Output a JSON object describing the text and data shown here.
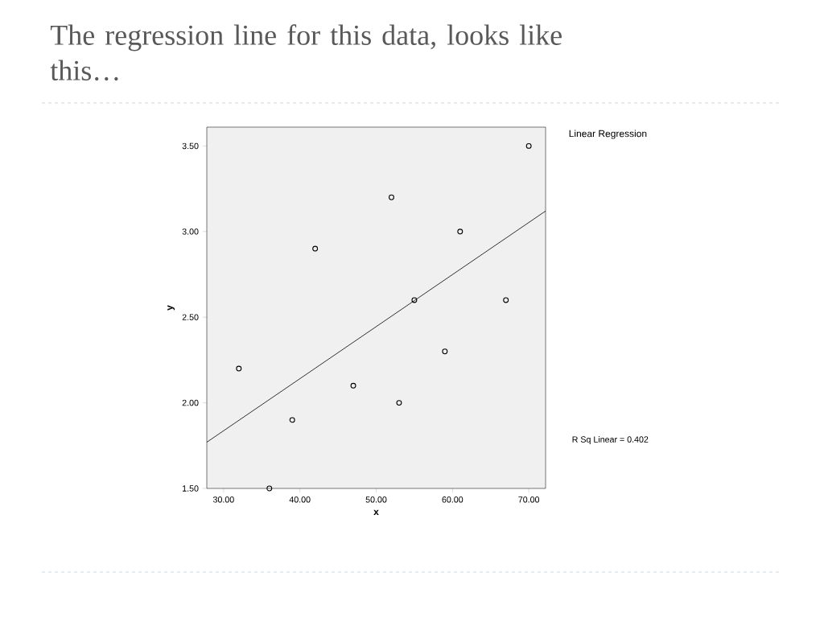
{
  "chart_data": {
    "type": "scatter",
    "title": "The regression line for this data, looks like this…",
    "xlabel": "x",
    "ylabel": "y",
    "x": [
      32,
      36,
      39,
      42,
      47,
      52,
      53,
      55,
      59,
      61,
      67,
      70
    ],
    "series": [
      {
        "type": "scatter",
        "color": "#000000",
        "marker": "circle",
        "values": [
          2.2,
          1.5,
          1.9,
          2.9,
          2.1,
          3.2,
          2.0,
          2.6,
          2.3,
          3.0,
          2.6,
          3.5
        ]
      },
      {
        "type": "line",
        "color": "#000000",
        "x": [
          27.8,
          72.2
        ],
        "values": [
          1.77,
          3.12
        ]
      }
    ],
    "xlim": [
      27.8,
      72.2
    ],
    "ylim": [
      1.5,
      3.61
    ],
    "xticks": [
      {
        "value": 30,
        "label": "30.00"
      },
      {
        "value": 40,
        "label": "40.00"
      },
      {
        "value": 50,
        "label": "50.00"
      },
      {
        "value": 60,
        "label": "60.00"
      },
      {
        "value": 70,
        "label": "70.00"
      }
    ],
    "yticks": [
      {
        "value": 1.5,
        "label": "1.50"
      },
      {
        "value": 2.0,
        "label": "2.00"
      },
      {
        "value": 2.5,
        "label": "2.50"
      },
      {
        "value": 3.0,
        "label": "3.00"
      },
      {
        "value": 3.5,
        "label": "3.50"
      }
    ],
    "annotations": [
      "Linear Regression",
      "R Sq Linear = 0.402"
    ],
    "grid": false
  }
}
